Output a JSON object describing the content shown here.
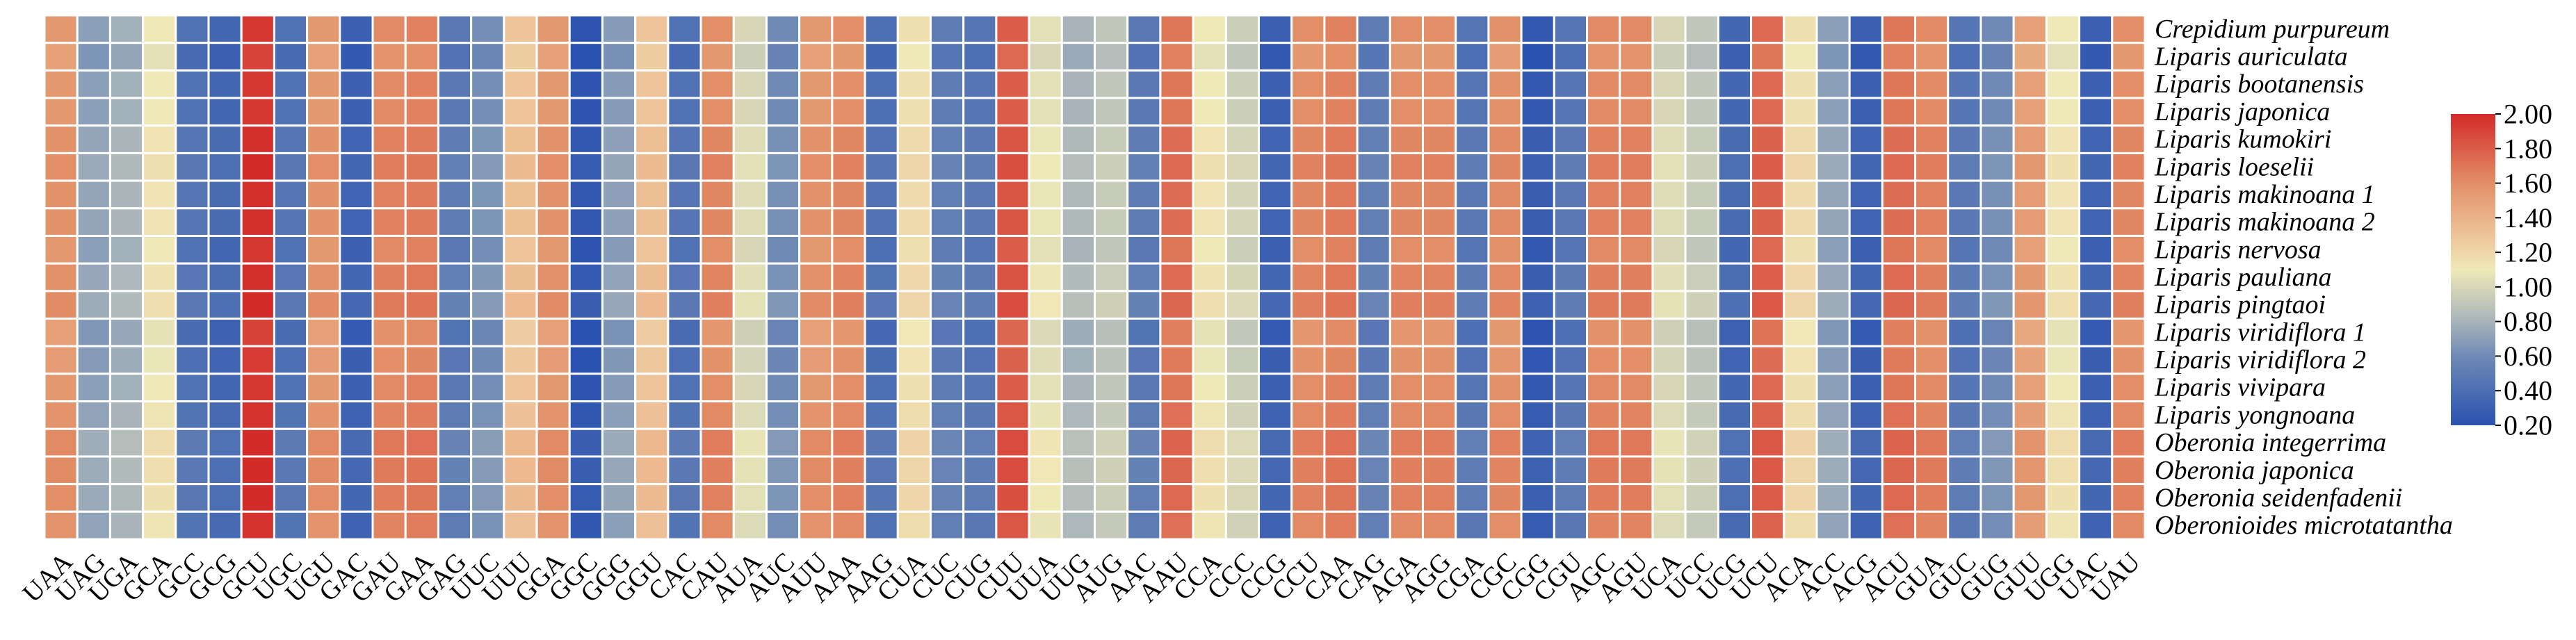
{
  "chart_data": {
    "type": "heatmap",
    "columns": [
      "UAA",
      "UAG",
      "UGA",
      "GCA",
      "GCC",
      "GCG",
      "GCU",
      "UGC",
      "UGU",
      "GAC",
      "GAU",
      "GAA",
      "GAG",
      "UUC",
      "UUU",
      "GGA",
      "GGC",
      "GGG",
      "GGU",
      "CAC",
      "CAU",
      "AUA",
      "AUC",
      "AUU",
      "AAA",
      "AAG",
      "CUA",
      "CUC",
      "CUG",
      "CUU",
      "UUA",
      "UUG",
      "AUG",
      "AAC",
      "AAU",
      "CCA",
      "CCC",
      "CCG",
      "CCU",
      "CAA",
      "CAG",
      "AGA",
      "AGG",
      "CGA",
      "CGC",
      "CGG",
      "CGU",
      "AGC",
      "AGU",
      "UCA",
      "UCC",
      "UCG",
      "UCU",
      "ACA",
      "ACC",
      "ACG",
      "ACU",
      "GUA",
      "GUC",
      "GUG",
      "GUU",
      "UGG",
      "UAC",
      "UAU"
    ],
    "rows": [
      "Crepidium purpureum",
      "Liparis auriculata",
      "Liparis bootanensis",
      "Liparis japonica",
      "Liparis kumokiri",
      "Liparis loeselii",
      "Liparis makinoana 1",
      "Liparis makinoana 2",
      "Liparis nervosa",
      "Liparis pauliana",
      "Liparis pingtaoi",
      "Liparis viridiflora 1",
      "Liparis viridiflora 2",
      "Liparis vivipara",
      "Liparis yongnoana",
      "Oberonia integerrima",
      "Oberonia japonica",
      "Oberonia seidenfadenii",
      "Oberonioides microtatantha"
    ],
    "column_values": [
      1.55,
      0.7,
      0.78,
      1.1,
      0.42,
      0.35,
      1.95,
      0.42,
      1.55,
      0.3,
      1.62,
      1.65,
      0.48,
      0.62,
      1.3,
      1.55,
      0.22,
      0.68,
      1.3,
      0.42,
      1.6,
      1.0,
      0.6,
      1.55,
      1.6,
      0.4,
      1.15,
      0.5,
      0.45,
      1.8,
      1.05,
      0.8,
      0.9,
      0.48,
      1.7,
      1.1,
      0.95,
      0.3,
      1.6,
      1.65,
      0.5,
      1.6,
      1.6,
      0.45,
      1.58,
      0.25,
      0.45,
      1.62,
      1.62,
      1.0,
      0.9,
      0.35,
      1.75,
      1.15,
      0.7,
      0.3,
      1.7,
      1.62,
      0.45,
      0.6,
      1.5,
      1.1,
      0.3,
      1.6
    ],
    "row_offsets": [
      0.0,
      -0.05,
      0.0,
      0.0,
      0.03,
      0.05,
      0.03,
      0.03,
      0.0,
      0.04,
      0.06,
      -0.04,
      -0.02,
      0.0,
      0.02,
      0.07,
      0.06,
      0.05,
      0.02
    ],
    "colorbar": {
      "min": 0.2,
      "max": 2.0,
      "ticks": [
        "2.00",
        "1.80",
        "1.60",
        "1.40",
        "1.20",
        "1.00",
        "0.80",
        "0.60",
        "0.40",
        "0.20"
      ]
    },
    "colorscale": [
      "#2a52b0",
      "#6f8ab5",
      "#a8b4ba",
      "#efe9b7",
      "#eec49a",
      "#e28f67",
      "#d32a2a"
    ],
    "grid_line_color": "#ffffff",
    "legend": "right"
  }
}
